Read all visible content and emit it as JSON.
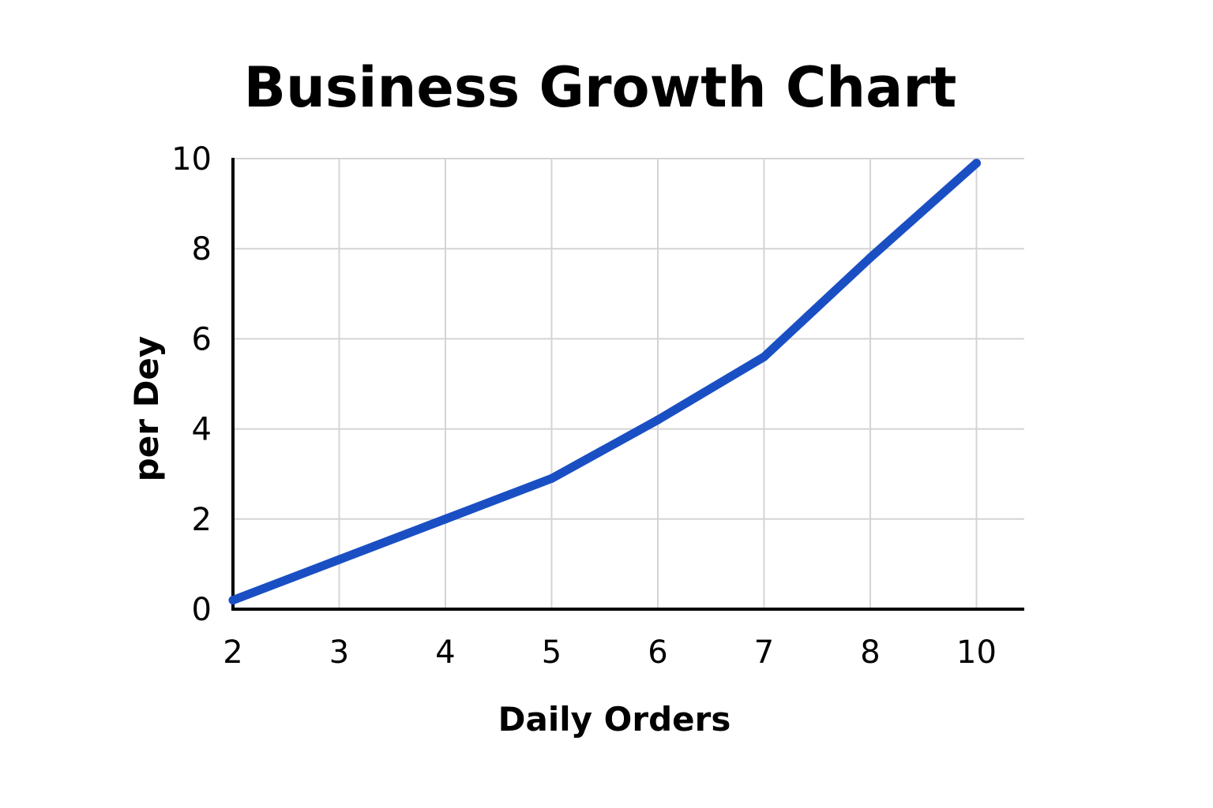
{
  "chart_data": {
    "type": "line",
    "title": "Business Growth Chart",
    "xlabel": "Daily Orders",
    "ylabel": "per Dey",
    "categories": [
      "2",
      "3",
      "4",
      "5",
      "6",
      "7",
      "8",
      "10"
    ],
    "y_ticks": [
      "0",
      "2",
      "4",
      "6",
      "8",
      "10"
    ],
    "ylim": [
      0,
      10
    ],
    "grid": true,
    "series": [
      {
        "color": "#1a4fc4",
        "values": [
          0.2,
          1.1,
          2.0,
          2.9,
          4.2,
          5.6,
          7.8,
          9.9
        ]
      }
    ]
  }
}
